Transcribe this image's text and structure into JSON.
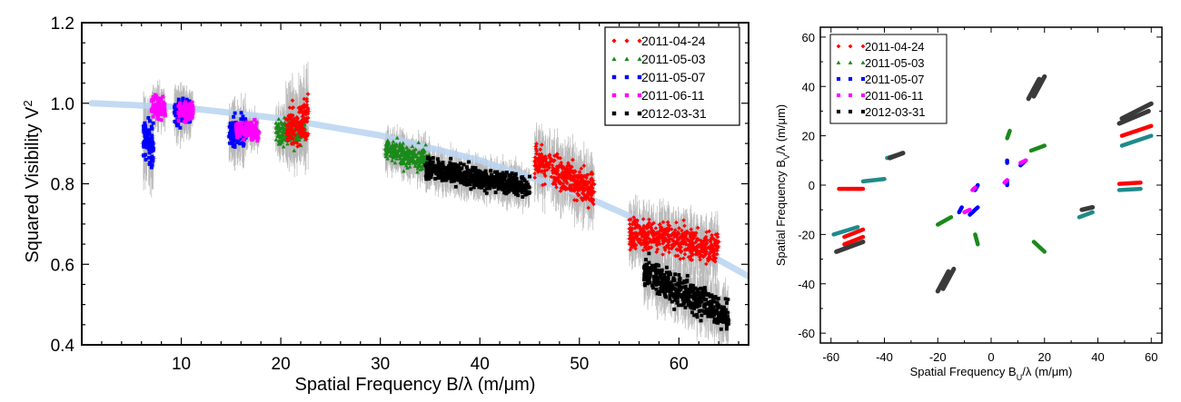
{
  "colors": {
    "2011-04-24": "#ff0000",
    "2011-05-03": "#1a8a1a",
    "2011-05-07": "#0000ff",
    "2011-06-11": "#ff00ff",
    "2012-03-31": "#000000",
    "errorbar": "#b8b8b8",
    "model": "#b8d4f0",
    "uv_green": "#1f8a8a",
    "uv_black": "#3a3a3a"
  },
  "chart_data": [
    {
      "type": "scatter",
      "xlabel": "Spatial Frequency B/λ (m/μm)",
      "ylabel": "Squared Visibility V²",
      "xlim": [
        0,
        67
      ],
      "ylim": [
        0.4,
        1.2
      ],
      "xticks": [
        "10",
        "20",
        "30",
        "40",
        "50",
        "60"
      ],
      "yticks": [
        "0.4",
        "0.6",
        "0.8",
        "1.0",
        "1.2"
      ],
      "legend": [
        "2011-04-24",
        "2011-05-03",
        "2011-05-07",
        "2011-06-11",
        "2012-03-31"
      ],
      "legend_position": "top-right",
      "model_curve": {
        "x": [
          1,
          10,
          20,
          30,
          40,
          50,
          60,
          67
        ],
        "y": [
          1.0,
          0.99,
          0.962,
          0.92,
          0.858,
          0.775,
          0.665,
          0.57
        ]
      },
      "series": [
        {
          "name": "2011-04-24",
          "clusters": [
            {
              "x": [
                20.5,
                22.8
              ],
              "y_start": 0.93,
              "y_end": 0.97,
              "spread": 0.05
            },
            {
              "x": [
                45.5,
                51.5
              ],
              "y_start": 0.86,
              "y_end": 0.78,
              "spread": 0.04
            },
            {
              "x": [
                55,
                64
              ],
              "y_start": 0.68,
              "y_end": 0.64,
              "spread": 0.035
            }
          ]
        },
        {
          "name": "2011-05-03",
          "clusters": [
            {
              "x": [
                19.5,
                22.5
              ],
              "y_start": 0.93,
              "y_end": 0.93,
              "spread": 0.03
            },
            {
              "x": [
                30.5,
                35
              ],
              "y_start": 0.885,
              "y_end": 0.855,
              "spread": 0.025
            }
          ]
        },
        {
          "name": "2011-05-07",
          "clusters": [
            {
              "x": [
                6.2,
                7.2
              ],
              "y_start": 0.92,
              "y_end": 0.89,
              "spread": 0.05
            },
            {
              "x": [
                9.3,
                11
              ],
              "y_start": 0.98,
              "y_end": 0.98,
              "spread": 0.03
            },
            {
              "x": [
                14.8,
                16.5
              ],
              "y_start": 0.93,
              "y_end": 0.93,
              "spread": 0.035
            }
          ]
        },
        {
          "name": "2011-06-11",
          "clusters": [
            {
              "x": [
                7,
                8.4
              ],
              "y_start": 0.99,
              "y_end": 0.99,
              "spread": 0.025
            },
            {
              "x": [
                9.7,
                11.2
              ],
              "y_start": 0.98,
              "y_end": 0.98,
              "spread": 0.02
            },
            {
              "x": [
                15.5,
                17.8
              ],
              "y_start": 0.935,
              "y_end": 0.93,
              "spread": 0.02
            }
          ]
        },
        {
          "name": "2012-03-31",
          "clusters": [
            {
              "x": [
                34.5,
                45
              ],
              "y_start": 0.84,
              "y_end": 0.79,
              "spread": 0.025
            },
            {
              "x": [
                56.5,
                65
              ],
              "y_start": 0.58,
              "y_end": 0.47,
              "spread": 0.035
            }
          ]
        }
      ]
    },
    {
      "type": "scatter",
      "xlabel": "Spatial Frequency B_U/λ (m/μm)",
      "ylabel": "Spatial Frequency B_V/λ (m/μm)",
      "xlim": [
        -64,
        64
      ],
      "ylim": [
        -64,
        64
      ],
      "xticks": [
        "-60",
        "-40",
        "-20",
        "0",
        "20",
        "40",
        "60"
      ],
      "yticks": [
        "-60",
        "-40",
        "-20",
        "0",
        "20",
        "40",
        "60"
      ],
      "legend": [
        "2011-04-24",
        "2011-05-03",
        "2011-05-07",
        "2011-06-11",
        "2012-03-31"
      ],
      "legend_position": "top-left",
      "series": [
        {
          "name": "2011-04-24",
          "tracks": [
            [
              [
                -55,
                -21
              ],
              [
                -48,
                -18
              ]
            ],
            [
              [
                48,
                0.5
              ],
              [
                56,
                1
              ]
            ],
            [
              [
                49,
                20
              ],
              [
                60,
                24
              ]
            ],
            [
              [
                -55,
                -24
              ],
              [
                -48,
                -21
              ]
            ],
            [
              [
                -57,
                -1.5
              ],
              [
                -48,
                -1.5
              ]
            ]
          ]
        },
        {
          "name": "2011-05-03",
          "tracks": [
            [
              [
                -39,
                11
              ],
              [
                -33,
                13
              ]
            ],
            [
              [
                33,
                -13
              ],
              [
                38,
                -11
              ]
            ],
            [
              [
                15,
                14
              ],
              [
                20,
                16
              ]
            ],
            [
              [
                -20,
                -16
              ],
              [
                -15,
                -13
              ]
            ],
            [
              [
                16,
                -23
              ],
              [
                20,
                -27
              ]
            ],
            [
              [
                -6,
                -20
              ],
              [
                -5,
                -24
              ]
            ],
            [
              [
                6,
                19
              ],
              [
                7,
                22
              ]
            ]
          ]
        },
        {
          "name": "2011-05-07",
          "tracks": [
            [
              [
                -8,
                -12
              ],
              [
                -5,
                -9
              ]
            ],
            [
              [
                -11,
                -9
              ],
              [
                -12,
                -11
              ]
            ],
            [
              [
                6,
                9
              ],
              [
                6,
                10
              ]
            ],
            [
              [
                11,
                8
              ],
              [
                13,
                10
              ]
            ],
            [
              [
                -6,
                -2
              ],
              [
                -5,
                0
              ]
            ],
            [
              [
                6,
                2
              ],
              [
                6,
                0
              ]
            ]
          ]
        },
        {
          "name": "2011-06-11",
          "tracks": [
            [
              [
                -7,
                -2
              ],
              [
                -6,
                -1
              ]
            ],
            [
              [
                11,
                9
              ],
              [
                13,
                10
              ]
            ],
            [
              [
                5,
                1
              ],
              [
                6,
                2
              ]
            ],
            [
              [
                -10,
                -11
              ],
              [
                -8,
                -10
              ]
            ]
          ]
        },
        {
          "name": "2012-03-31",
          "tracks": [
            [
              [
                -58,
                -27
              ],
              [
                -48,
                -23
              ]
            ],
            [
              [
                -38,
                11
              ],
              [
                -33,
                13
              ]
            ],
            [
              [
                -18,
                -42
              ],
              [
                -14,
                -34
              ]
            ],
            [
              [
                -20,
                -43
              ],
              [
                -16,
                -35
              ]
            ],
            [
              [
                14,
                35
              ],
              [
                18,
                43
              ]
            ],
            [
              [
                16,
                36
              ],
              [
                20,
                44
              ]
            ],
            [
              [
                48,
                25
              ],
              [
                59,
                30
              ]
            ],
            [
              [
                49,
                27
              ],
              [
                60,
                33
              ]
            ],
            [
              [
                34,
                -10
              ],
              [
                38,
                -9
              ]
            ]
          ]
        }
      ]
    }
  ]
}
